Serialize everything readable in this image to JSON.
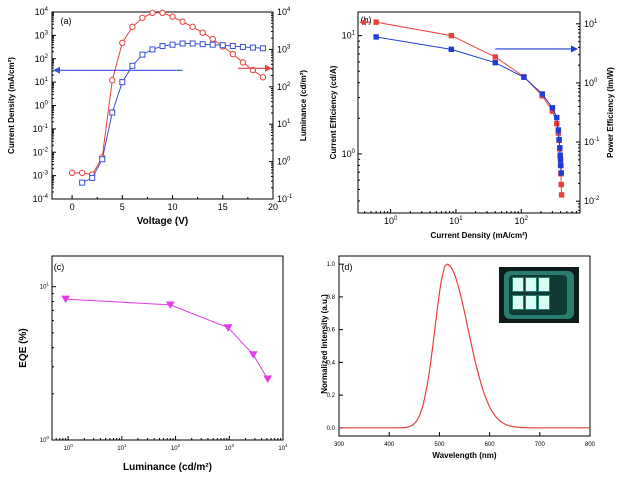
{
  "colors": {
    "red": "#e8413c",
    "blue": "#3b50d6",
    "blue_dark": "#1f3dd6",
    "magenta": "#e23be8"
  },
  "chart_data": [
    {
      "panel": "(a)",
      "type": "line",
      "xlabel": "Voltage (V)",
      "ylabel": "Current Density (mA/cm²)",
      "ylabel_right": "Luminance (cd/m²)",
      "xlim": [
        -2,
        20
      ],
      "xticks": [
        0,
        5,
        10,
        15,
        20
      ],
      "ylim_log_exp": [
        -4,
        4
      ],
      "ylim_right_log_exp": [
        -1,
        4
      ],
      "series": [
        {
          "axis": "right",
          "marker": "circle",
          "color": "#e8413c",
          "x": [
            0,
            1,
            2,
            3,
            4,
            5,
            6,
            7,
            8,
            9,
            10,
            11,
            12,
            13,
            14,
            15,
            16,
            17,
            18,
            19
          ],
          "values": [
            0.5,
            0.5,
            0.45,
            1.3,
            150,
            1500,
            4000,
            7000,
            9500,
            9500,
            7500,
            5500,
            4000,
            2800,
            1900,
            1200,
            750,
            450,
            280,
            180
          ]
        },
        {
          "axis": "left",
          "marker": "square",
          "color": "#3b50d6",
          "x": [
            1,
            2,
            3,
            4,
            5,
            6,
            7,
            8,
            9,
            10,
            11,
            12,
            13,
            14,
            15,
            16,
            17,
            18,
            19
          ],
          "values": [
            0.0005,
            0.0008,
            0.005,
            0.5,
            10,
            50,
            150,
            250,
            350,
            400,
            450,
            450,
            420,
            400,
            380,
            350,
            320,
            300,
            280
          ]
        }
      ],
      "arrows": [
        "left",
        "right"
      ]
    },
    {
      "panel": "(b)",
      "type": "line",
      "xlabel": "Current Density (mA/cm²)",
      "ylabel": "Current Efficiency (cd/A)",
      "ylabel_right": "Power Efficiency (lm/W)",
      "xlim_log_exp": [
        -0.5,
        2.9
      ],
      "ylim_log_exp": [
        -0.5,
        1.2
      ],
      "ylim_right_log_exp": [
        -2.2,
        1.2
      ],
      "xticks_exp": [
        0,
        1,
        2
      ],
      "yticks_exp": [
        0,
        1
      ],
      "yticks_right_exp": [
        -2,
        -1,
        0,
        1
      ],
      "series": [
        {
          "axis": "left",
          "marker": "square",
          "color": "#e8413c",
          "x": [
            0.6,
            8.5,
            40,
            110,
            210,
            300,
            350,
            370,
            380,
            390,
            395,
            400,
            405,
            410,
            415
          ],
          "values": [
            13,
            10,
            6.6,
            4.5,
            3.1,
            2.3,
            1.8,
            1.5,
            1.3,
            1.1,
            0.95,
            0.8,
            0.68,
            0.55,
            0.45
          ]
        },
        {
          "axis": "right",
          "marker": "square",
          "color": "#1f3dd6",
          "x": [
            0.6,
            8.5,
            40,
            110,
            210,
            300,
            350,
            370,
            380,
            390,
            395,
            400,
            405,
            410
          ],
          "values": [
            6,
            3.7,
            2.2,
            1.25,
            0.65,
            0.38,
            0.26,
            0.16,
            0.11,
            0.08,
            0.06,
            0.05,
            0.04,
            0.03
          ]
        }
      ],
      "arrows": [
        "left",
        "right"
      ]
    },
    {
      "panel": "(c)",
      "type": "line",
      "xlabel": "Luminance (cd/m²)",
      "ylabel": "EQE (%)",
      "xlim_log_exp": [
        -0.3,
        4
      ],
      "ylim_log_exp": [
        0,
        1.2
      ],
      "xticks_exp": [
        0,
        1,
        2,
        3,
        4
      ],
      "yticks_exp": [
        0,
        1
      ],
      "series": [
        {
          "marker": "triangle-down",
          "color": "#e23be8",
          "x": [
            0.9,
            80,
            950,
            2800,
            5200
          ],
          "values": [
            8.3,
            7.6,
            5.4,
            3.6,
            2.5
          ]
        }
      ]
    },
    {
      "panel": "(d)",
      "type": "line",
      "xlabel": "Wavelength (nm)",
      "ylabel": "Normalized Intensity (a.u.)",
      "xlim": [
        300,
        800
      ],
      "ylim": [
        -0.05,
        1.05
      ],
      "xticks": [
        300,
        400,
        500,
        600,
        700,
        800
      ],
      "yticks": [
        0.0,
        0.2,
        0.4,
        0.6,
        0.8,
        1.0
      ],
      "ytick_labels": [
        "0.0",
        "0.2",
        "0.4",
        "0.6",
        "0.8",
        "1.0"
      ],
      "series": [
        {
          "color": "#e8413c",
          "peak": 515,
          "left_width": 24,
          "right_width": 42
        }
      ]
    }
  ]
}
